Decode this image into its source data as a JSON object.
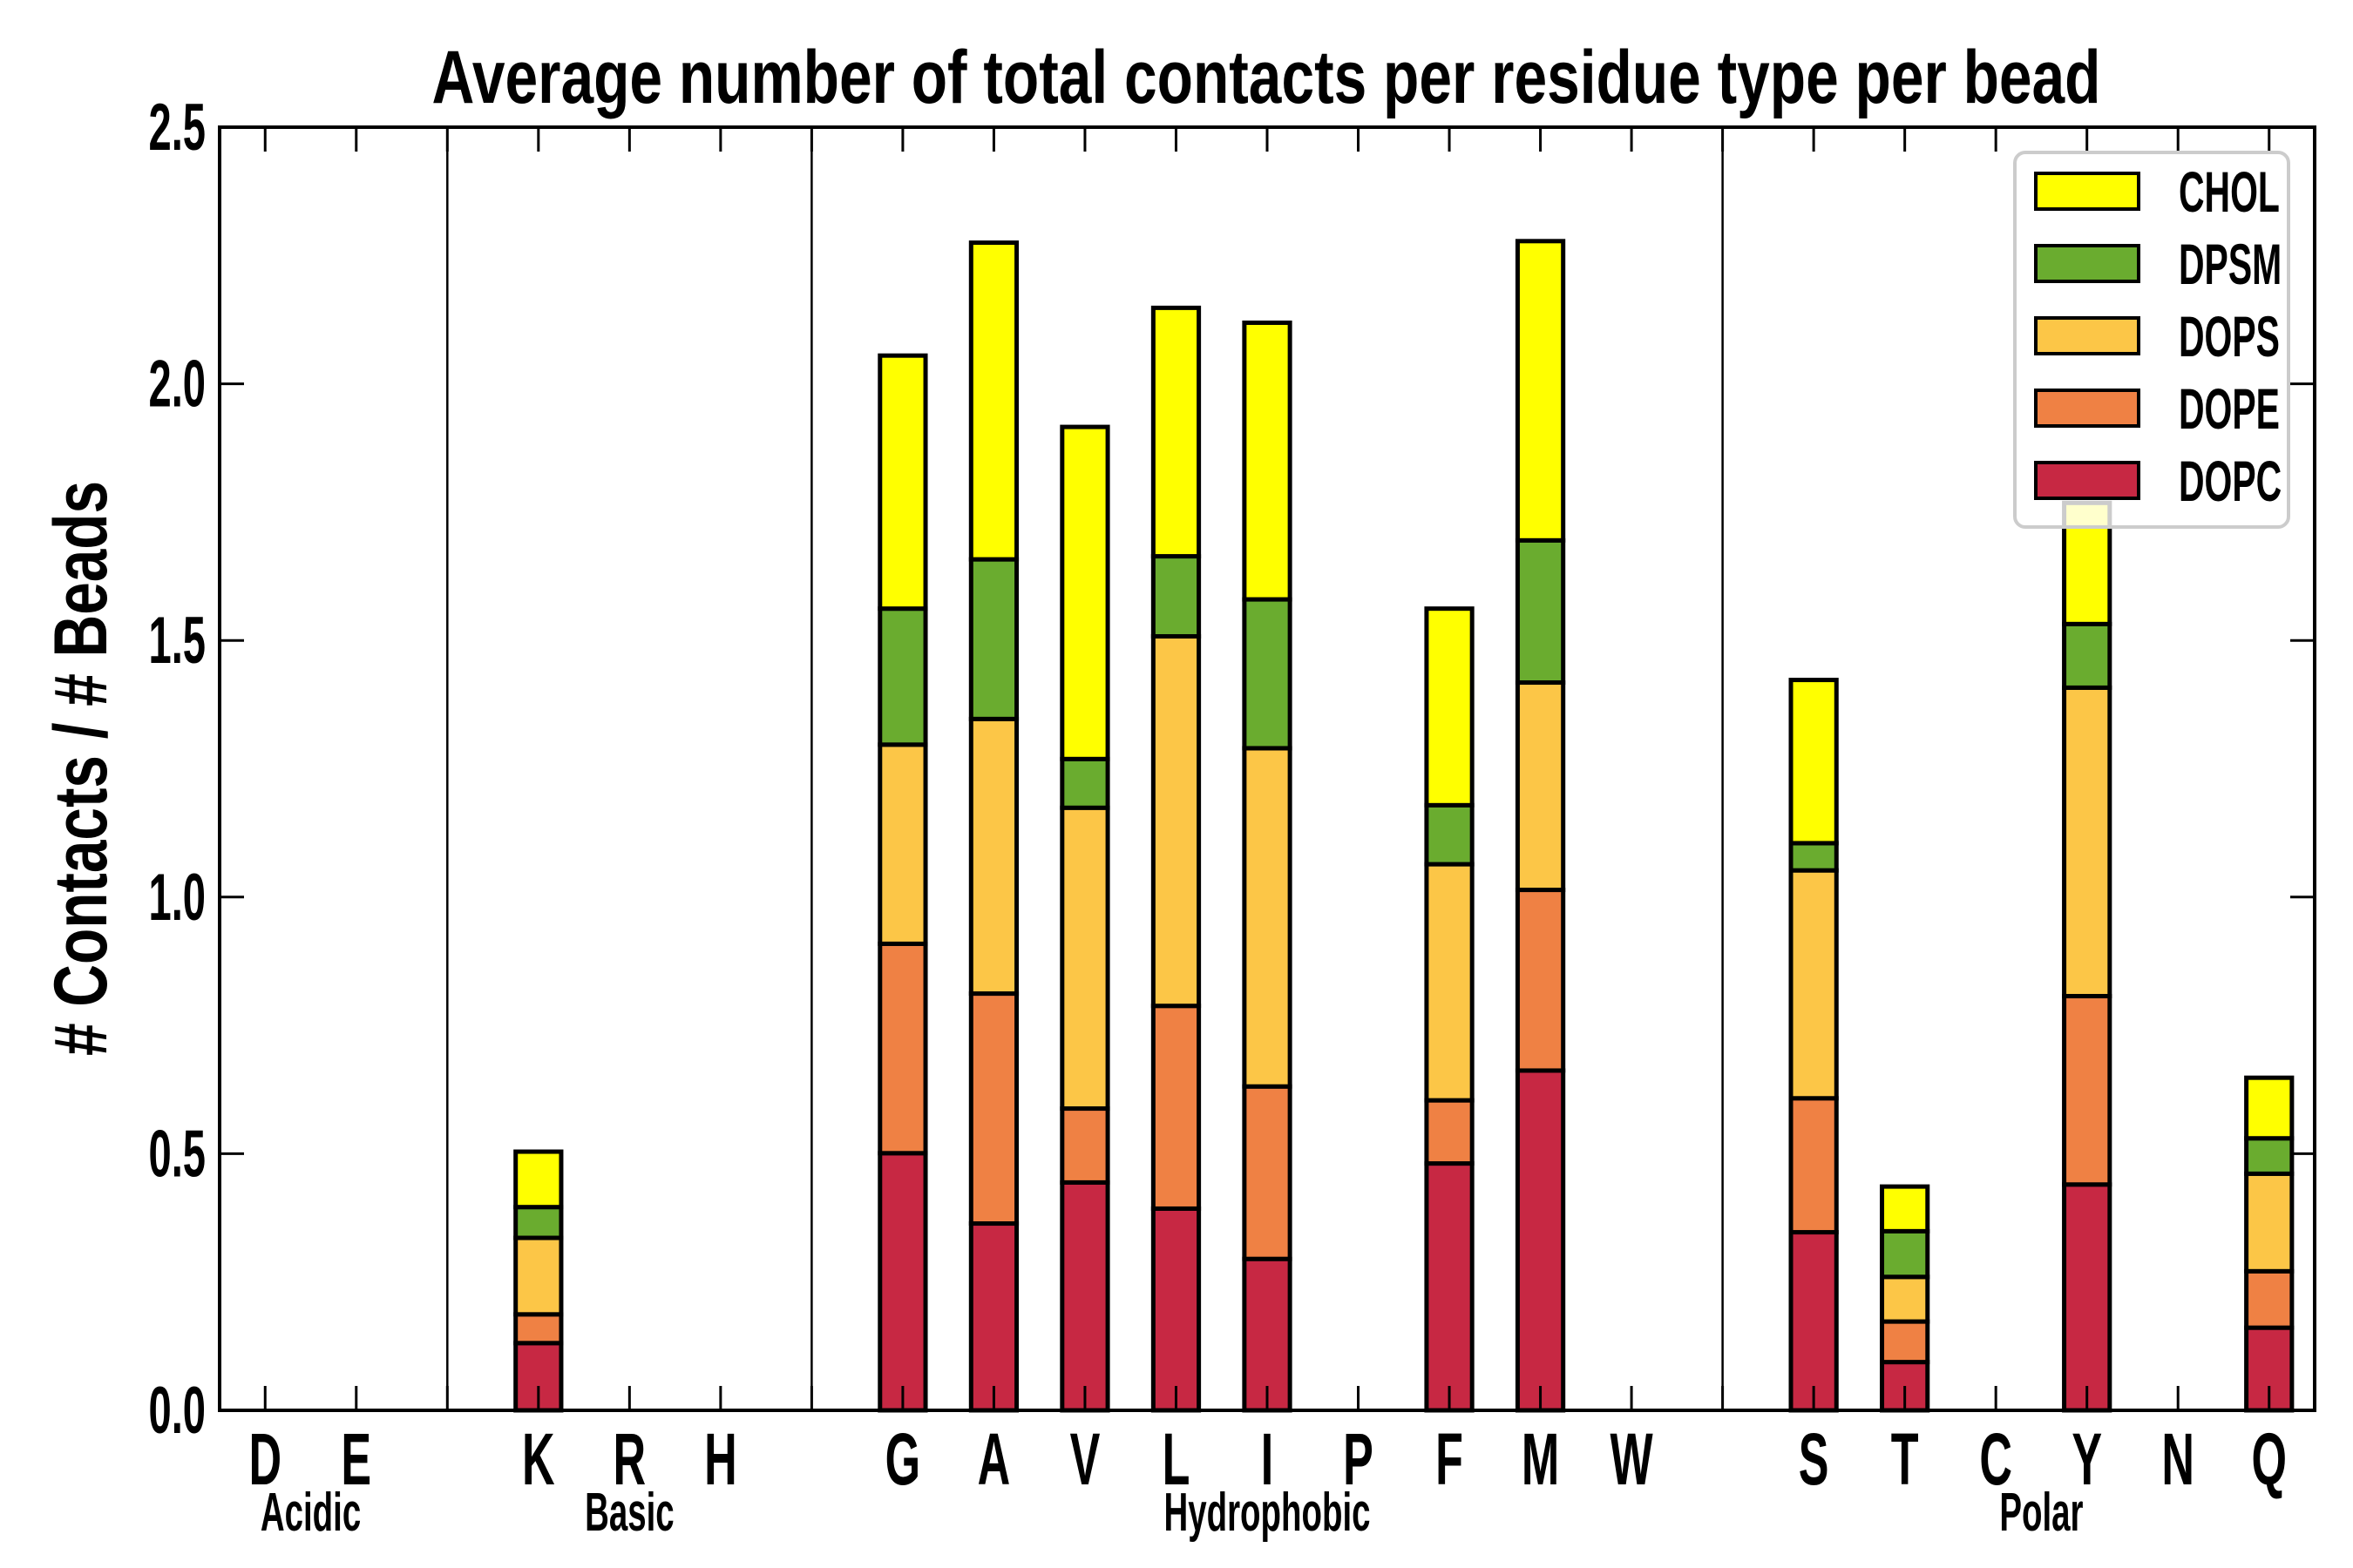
{
  "chart_data": {
    "type": "bar",
    "stacked": true,
    "title": "Average number of total contacts per residue type per bead",
    "xlabel": "",
    "ylabel": "# Contacts / # Beads",
    "ylim": [
      0,
      2.5
    ],
    "yticks": [
      "0.0",
      "0.5",
      "1.0",
      "1.5",
      "2.0",
      "2.5"
    ],
    "ytick_values": [
      0,
      0.5,
      1.0,
      1.5,
      2.0,
      2.5
    ],
    "grid": false,
    "legend_position": "top-right",
    "categories": [
      "D",
      "E",
      "",
      "K",
      "R",
      "H",
      "",
      "G",
      "A",
      "V",
      "L",
      "I",
      "P",
      "F",
      "M",
      "W",
      "",
      "S",
      "T",
      "C",
      "Y",
      "N",
      "Q"
    ],
    "group_separators_after": [
      "E",
      "H",
      "W"
    ],
    "groups": [
      {
        "label": "Acidic",
        "members": [
          "D",
          "E"
        ]
      },
      {
        "label": "Basic",
        "members": [
          "K",
          "R",
          "H"
        ]
      },
      {
        "label": "Hydrophobic",
        "members": [
          "G",
          "A",
          "V",
          "L",
          "I",
          "P",
          "F",
          "M",
          "W"
        ]
      },
      {
        "label": "Polar",
        "members": [
          "S",
          "T",
          "C",
          "Y",
          "N",
          "Q"
        ]
      }
    ],
    "series": [
      {
        "name": "DOPC",
        "color": "#c72843",
        "values": [
          0,
          0,
          0,
          0.131,
          0,
          0,
          0,
          0.501,
          0.364,
          0.444,
          0.393,
          0.295,
          0,
          0.481,
          0.662,
          0,
          0,
          0.347,
          0.094,
          0,
          0.44,
          0,
          0.161
        ]
      },
      {
        "name": "DOPE",
        "color": "#ef8144",
        "values": [
          0,
          0,
          0,
          0.056,
          0,
          0,
          0,
          0.408,
          0.448,
          0.144,
          0.395,
          0.336,
          0,
          0.123,
          0.352,
          0,
          0,
          0.261,
          0.079,
          0,
          0.367,
          0,
          0.11
        ]
      },
      {
        "name": "DOPS",
        "color": "#fcc647",
        "values": [
          0,
          0,
          0,
          0.149,
          0,
          0,
          0,
          0.388,
          0.535,
          0.586,
          0.72,
          0.659,
          0,
          0.46,
          0.404,
          0,
          0,
          0.444,
          0.087,
          0,
          0.601,
          0,
          0.19
        ]
      },
      {
        "name": "DPSM",
        "color": "#6aac2f",
        "values": [
          0,
          0,
          0,
          0.06,
          0,
          0,
          0,
          0.265,
          0.311,
          0.095,
          0.156,
          0.29,
          0,
          0.115,
          0.277,
          0,
          0,
          0.053,
          0.089,
          0,
          0.124,
          0,
          0.069
        ]
      },
      {
        "name": "CHOL",
        "color": "#ffff00",
        "values": [
          0,
          0,
          0,
          0.108,
          0,
          0,
          0,
          0.493,
          0.617,
          0.647,
          0.484,
          0.539,
          0,
          0.383,
          0.583,
          0,
          0,
          0.318,
          0.087,
          0,
          0.236,
          0,
          0.118
        ]
      }
    ],
    "legend_order": [
      "CHOL",
      "DPSM",
      "DOPS",
      "DOPE",
      "DOPC"
    ]
  }
}
